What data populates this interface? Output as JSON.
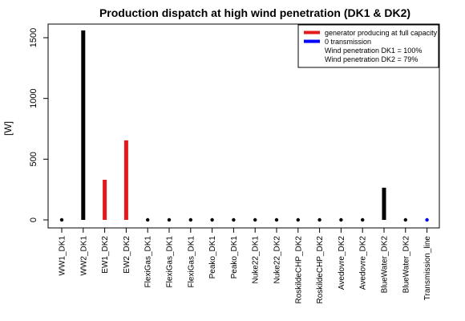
{
  "chart_data": {
    "type": "scatter",
    "title": "Production dispatch at high wind penetration (DK1 & DK2)",
    "xlabel": "",
    "ylabel": "[W]",
    "ylim": [
      0,
      1600
    ],
    "y_ticks": [
      0,
      500,
      1000,
      1500
    ],
    "grid": false,
    "legend_position": "top-right",
    "categories": [
      "WW1_DK1",
      "WW2_DK1",
      "EW1_DK2",
      "EW2_DK2",
      "FlexiGas_DK1",
      "FlexiGas_DK1",
      "FlexiGas_DK1",
      "Peako_DK1",
      "Peako_DK1",
      "Nuke22_DK1",
      "Nuke22_DK2",
      "RoskildeCHP_DK2",
      "RoskildeCHP_DK2",
      "Avedovre_DK2",
      "Avedovre_DK2",
      "BlueWater_DK2",
      "BlueWater_DK2",
      "Transmission_line"
    ],
    "values": [
      0,
      1560,
      330,
      655,
      0,
      0,
      0,
      0,
      0,
      0,
      0,
      0,
      0,
      0,
      0,
      265,
      0,
      0
    ],
    "colors": [
      "#000000",
      "#000000",
      "#e41a1c",
      "#e41a1c",
      "#000000",
      "#000000",
      "#000000",
      "#000000",
      "#000000",
      "#000000",
      "#000000",
      "#000000",
      "#000000",
      "#000000",
      "#000000",
      "#000000",
      "#000000",
      "#0000ff"
    ],
    "legend": [
      {
        "label": "generator producing at full capacity",
        "color": "#e41a1c"
      },
      {
        "label": "0 transmission",
        "color": "#0000ff"
      }
    ],
    "annotations": [
      "Wind penetration DK1 = 100%",
      "Wind penetration DK2 = 79%"
    ]
  }
}
